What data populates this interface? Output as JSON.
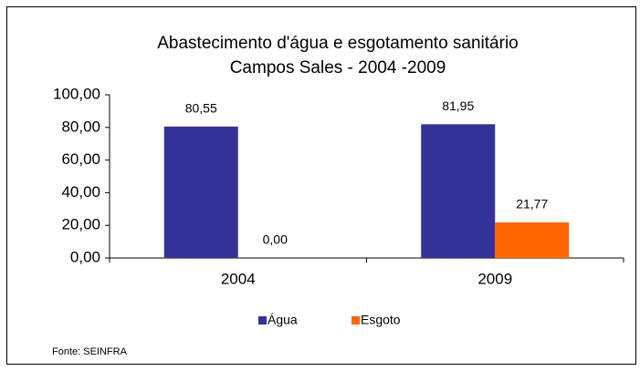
{
  "chart_data": {
    "type": "bar",
    "title": "Abastecimento d'água e esgotamento sanitário",
    "subtitle": "Campos Sales - 2004 -2009",
    "categories": [
      "2004",
      "2009"
    ],
    "series": [
      {
        "name": "Água",
        "color": "#333399",
        "values": [
          80.55,
          81.95
        ],
        "value_labels": [
          "80,55",
          "81,95"
        ]
      },
      {
        "name": "Esgoto",
        "color": "#ff6600",
        "values": [
          0,
          21.77
        ],
        "value_labels": [
          "0,00",
          "21,77"
        ]
      }
    ],
    "ylim": [
      0,
      100
    ],
    "yticks": [
      {
        "value": 0,
        "label": "0,00"
      },
      {
        "value": 20,
        "label": "20,00"
      },
      {
        "value": 40,
        "label": "40,00"
      },
      {
        "value": 60,
        "label": "60,00"
      },
      {
        "value": 80,
        "label": "80,00"
      },
      {
        "value": 100,
        "label": "100,00"
      }
    ],
    "grid": false,
    "legend": "bottom",
    "source": "Fonte: SEINFRA"
  }
}
